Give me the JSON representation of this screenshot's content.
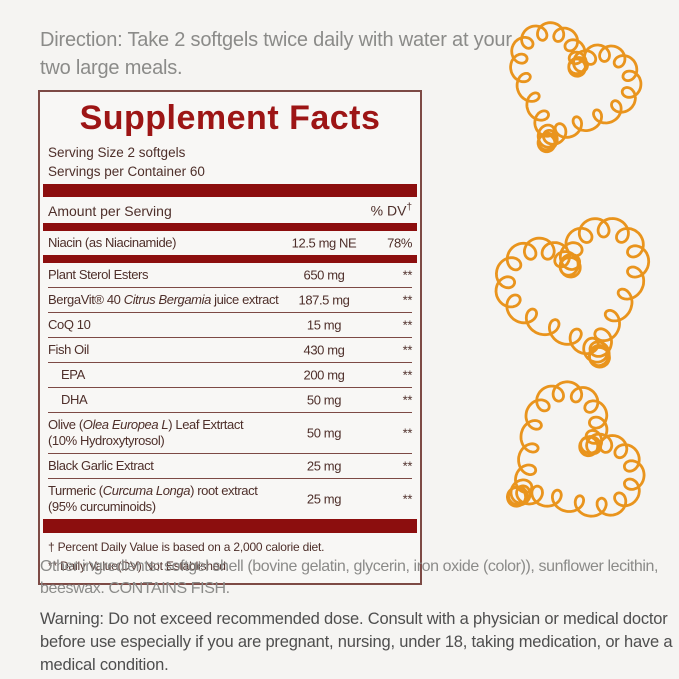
{
  "direction": {
    "text": "Direction: Take 2 softgels twice daily with water at your two large meals."
  },
  "supplement_facts": {
    "title": "Supplement Facts",
    "serving_size": "Serving Size 2 softgels",
    "servings_per_container": "Servings per Container 60",
    "header": {
      "amount_label": "Amount per Serving",
      "dv_label": "% DV",
      "dv_symbol": "†"
    },
    "niacin": {
      "name": "Niacin (as Niacinamide)",
      "amount": "12.5 mg NE",
      "dv": "78%"
    },
    "rows": [
      {
        "name_pre": "Plant Sterol Esters",
        "name_italic": "",
        "name_post": "",
        "amount": "650 mg",
        "dv": "**"
      },
      {
        "name_pre": "BergaVit® 40 ",
        "name_italic": "Citrus Bergamia",
        "name_post": " juice extract",
        "amount": "187.5 mg",
        "dv": "**"
      },
      {
        "name_pre": "CoQ 10",
        "name_italic": "",
        "name_post": "",
        "amount": "15 mg",
        "dv": "**"
      },
      {
        "name_pre": "Fish Oil",
        "name_italic": "",
        "name_post": "",
        "amount": "430 mg",
        "dv": "**"
      },
      {
        "name_pre": "EPA",
        "name_italic": "",
        "name_post": "",
        "amount": "200 mg",
        "dv": "**"
      },
      {
        "name_pre": "DHA",
        "name_italic": "",
        "name_post": "",
        "amount": "50 mg",
        "dv": "**"
      },
      {
        "name_pre": "Olive (",
        "name_italic": "Olea Europea L",
        "name_post": ") Leaf Extrtact (10% Hydroxytyrosol)",
        "amount": "50 mg",
        "dv": "**"
      },
      {
        "name_pre": "Black Garlic Extract",
        "name_italic": "",
        "name_post": "",
        "amount": "25 mg",
        "dv": "**"
      },
      {
        "name_pre": "Turmeric (",
        "name_italic": "Curcuma Longa",
        "name_post": ") root extract (95% curcuminoids)",
        "amount": "25 mg",
        "dv": "**"
      }
    ],
    "footnotes": [
      "† Percent Daily Value is based on a 2,000 calorie diet.",
      "** Daily Value(DV) Not Established."
    ]
  },
  "other_ingredients": {
    "text": "Other ingredients: softgel shell (bovine gelatin, glycerin, iron oxide (color)), sunflower lecithin, beeswax. CONTAINS FISH."
  },
  "warning": {
    "text": "Warning: Do not exceed recommended dose. Consult with a physician or medical doctor before use especially if you are pregnant, nursing, under 18, taking medication, or have a medical condition."
  },
  "colors": {
    "bar_red": "#8c0e0e",
    "title_red": "#9d1515",
    "text_maroon": "#4e2f2a",
    "box_border": "#7d4a45",
    "gray_text": "#8b8b89",
    "warning_text": "#4e4e4e",
    "heart_orange": "#e9941d"
  },
  "decor": {
    "hearts_count": 3
  }
}
